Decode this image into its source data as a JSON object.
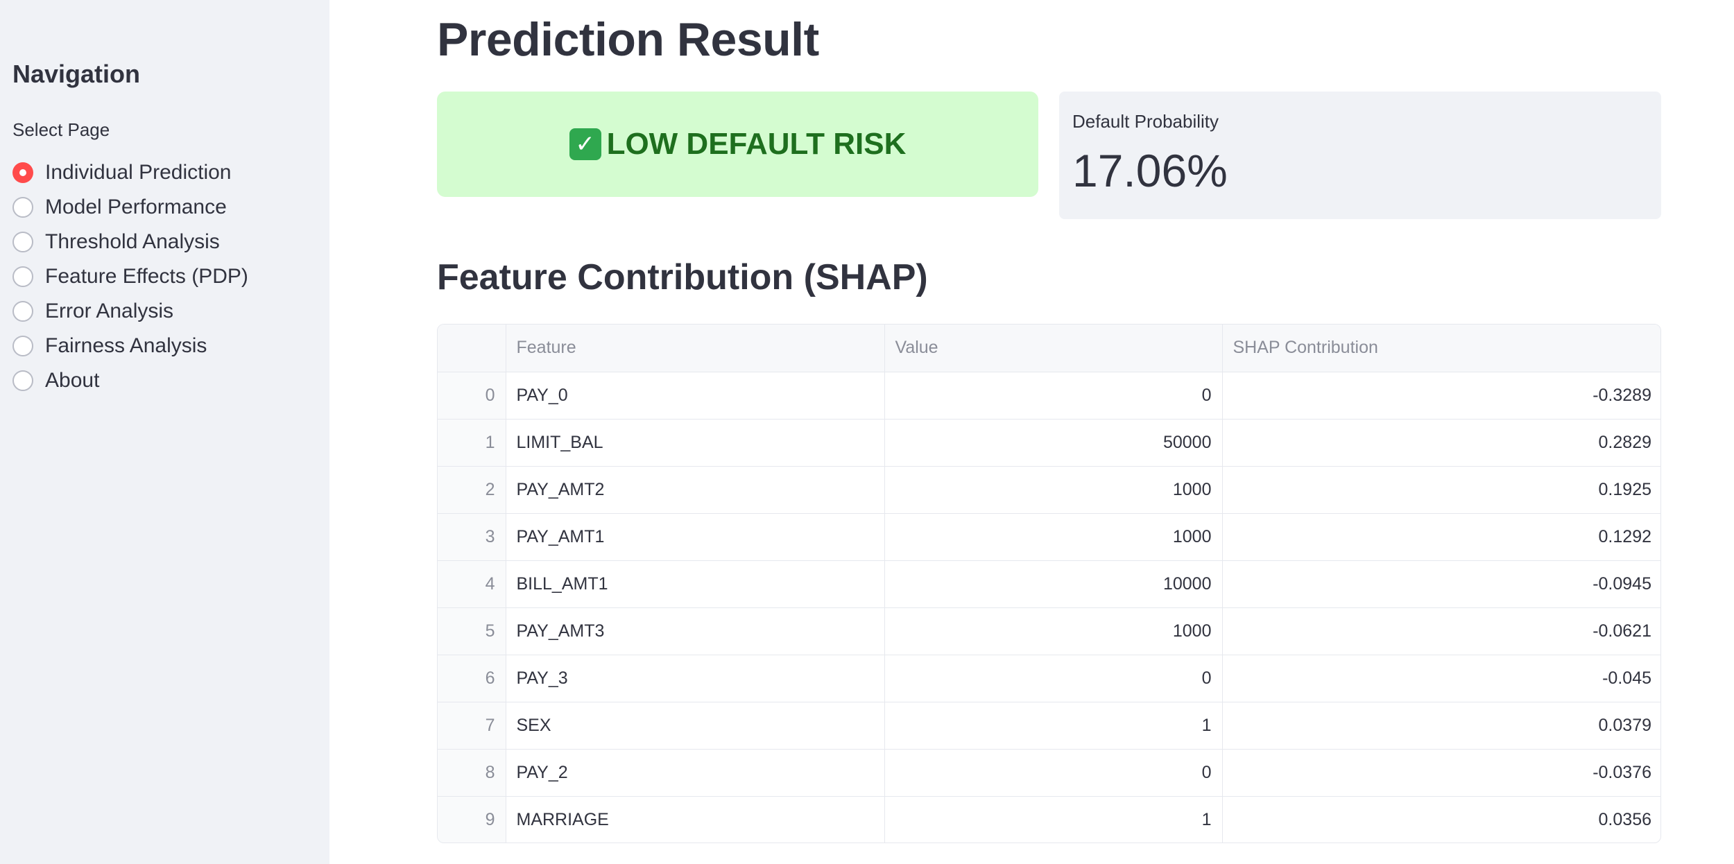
{
  "sidebar": {
    "title": "Navigation",
    "select_label": "Select Page",
    "options": [
      {
        "label": "Individual Prediction",
        "selected": true
      },
      {
        "label": "Model Performance",
        "selected": false
      },
      {
        "label": "Threshold Analysis",
        "selected": false
      },
      {
        "label": "Feature Effects (PDP)",
        "selected": false
      },
      {
        "label": "Error Analysis",
        "selected": false
      },
      {
        "label": "Fairness Analysis",
        "selected": false
      },
      {
        "label": "About",
        "selected": false
      }
    ]
  },
  "main": {
    "title": "Prediction Result",
    "risk_banner": {
      "icon": "check-mark-icon",
      "text": "LOW DEFAULT RISK"
    },
    "metric": {
      "label": "Default Probability",
      "value": "17.06%"
    },
    "section_title": "Feature Contribution (SHAP)",
    "table": {
      "columns": [
        "",
        "Feature",
        "Value",
        "SHAP Contribution"
      ],
      "rows": [
        {
          "index": "0",
          "feature": "PAY_0",
          "value": "0",
          "shap": "-0.3289"
        },
        {
          "index": "1",
          "feature": "LIMIT_BAL",
          "value": "50000",
          "shap": "0.2829"
        },
        {
          "index": "2",
          "feature": "PAY_AMT2",
          "value": "1000",
          "shap": "0.1925"
        },
        {
          "index": "3",
          "feature": "PAY_AMT1",
          "value": "1000",
          "shap": "0.1292"
        },
        {
          "index": "4",
          "feature": "BILL_AMT1",
          "value": "10000",
          "shap": "-0.0945"
        },
        {
          "index": "5",
          "feature": "PAY_AMT3",
          "value": "1000",
          "shap": "-0.0621"
        },
        {
          "index": "6",
          "feature": "PAY_3",
          "value": "0",
          "shap": "-0.045"
        },
        {
          "index": "7",
          "feature": "SEX",
          "value": "1",
          "shap": "0.0379"
        },
        {
          "index": "8",
          "feature": "PAY_2",
          "value": "0",
          "shap": "-0.0376"
        },
        {
          "index": "9",
          "feature": "MARRIAGE",
          "value": "1",
          "shap": "0.0356"
        }
      ]
    }
  },
  "colors": {
    "sidebar_bg": "#f0f2f6",
    "accent": "#ff4b4b",
    "success_bg": "#d4fcd0",
    "success_text": "#1e6f1e"
  }
}
